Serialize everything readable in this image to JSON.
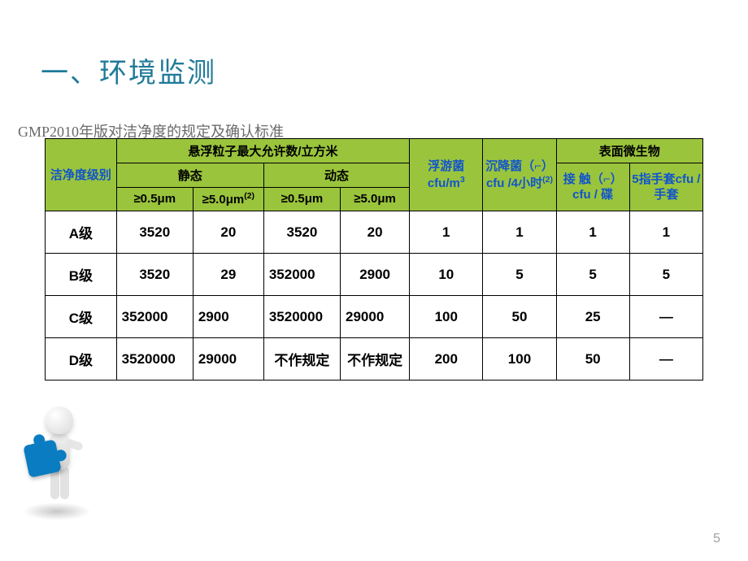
{
  "title": "一、环境监测",
  "subtitle": "GMP2010年版对洁净度的规定及确认标准",
  "page_number": "5",
  "colors": {
    "title_color": "#1f7a99",
    "subtitle_color": "#6a6a6a",
    "header_bg": "#9ac43c",
    "header_text_blue": "#1155cc",
    "border": "#000000",
    "page_num": "#a0a0a0",
    "puzzle": "#0a7cc2"
  },
  "table": {
    "headers": {
      "grade": "洁净度级别",
      "particle_top": "悬浮粒子最大允许数/立方米",
      "static": "静态",
      "dynamic": "动态",
      "col_05": "≥0.5μm",
      "col_50": "≥5.0μm",
      "col_50_sup": "(2)",
      "plankton": "浮游菌cfu/m",
      "plankton_sup": "3",
      "settle": "沉降菌（⌐）cfu /4小时",
      "settle_sup": "(2)",
      "surface_top": "表面微生物",
      "contact": "接 触（⌐）cfu / 碟",
      "glove": "5指手套cfu / 手套"
    },
    "rows": [
      {
        "grade": "A级",
        "s05": "3520",
        "s50": "20",
        "d05": "3520",
        "d50": "20",
        "plankton": "1",
        "settle": "1",
        "contact": "1",
        "glove": "1"
      },
      {
        "grade": "B级",
        "s05": "3520",
        "s50": "29",
        "d05": "352000",
        "d50": "2900",
        "plankton": "10",
        "settle": "5",
        "contact": "5",
        "glove": "5"
      },
      {
        "grade": "C级",
        "s05": "352000",
        "s50": "2900",
        "d05": "3520000",
        "d50": "29000",
        "plankton": "100",
        "settle": "50",
        "contact": "25",
        "glove": "—"
      },
      {
        "grade": "D级",
        "s05": "3520000",
        "s50": "29000",
        "d05": "不作规定",
        "d50": "不作规定",
        "plankton": "200",
        "settle": "100",
        "contact": "50",
        "glove": "—"
      }
    ]
  }
}
